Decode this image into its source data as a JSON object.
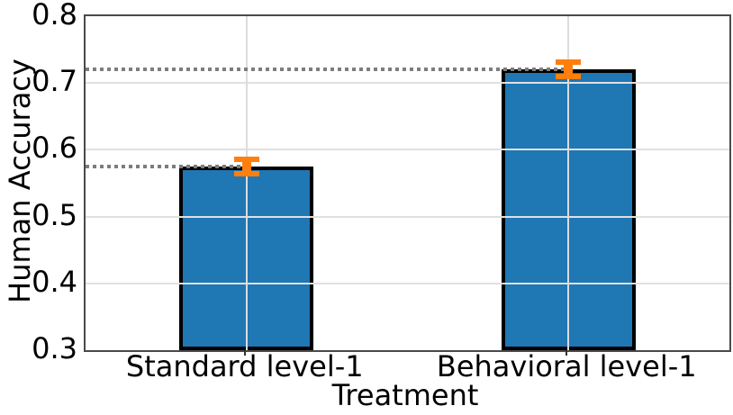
{
  "chart_data": {
    "type": "bar",
    "title": "",
    "xlabel": "Treatment",
    "ylabel": "Human Accuracy",
    "categories": [
      "Standard level-1",
      "Behavioral level-1"
    ],
    "values": [
      0.575,
      0.72
    ],
    "errors": [
      0.015,
      0.015
    ],
    "ylim": [
      0.3,
      0.8
    ],
    "yticks": [
      0.3,
      0.4,
      0.5,
      0.6,
      0.7,
      0.8
    ],
    "ytick_labels": [
      "0.3",
      "0.4",
      "0.5",
      "0.6",
      "0.7",
      "0.8"
    ],
    "grid": true,
    "legend_position": "none",
    "reference_lines": [
      {
        "y": 0.575,
        "ends_at_category": 0,
        "style": "dotted"
      },
      {
        "y": 0.72,
        "ends_at_category": 1,
        "style": "dotted"
      }
    ],
    "colors": {
      "bar_fill": "#1f77b4",
      "bar_edge": "#000000",
      "error_bar": "#ff7f0e",
      "grid_line_h": "#e0e0e0",
      "grid_line_v": "#dcdcdc",
      "dotted_line": "#7d7d7d",
      "spine": "#4a4a4a",
      "text": "#000000"
    }
  }
}
